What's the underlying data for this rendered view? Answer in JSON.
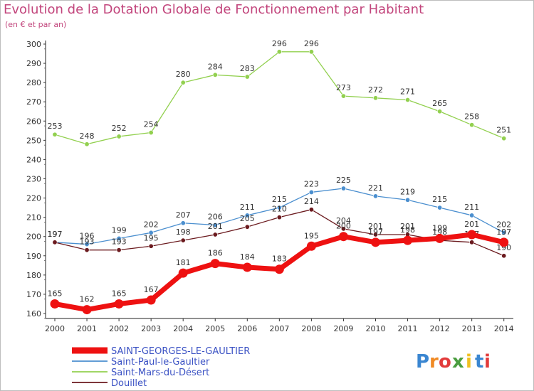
{
  "chart_data": {
    "type": "line",
    "title": "Evolution de la Dotation Globale de Fonctionnement par Habitant",
    "subtitle": "(en € et par an)",
    "xlabel": "",
    "ylabel": "",
    "ylim": [
      160,
      300
    ],
    "yticks": [
      160,
      170,
      180,
      190,
      200,
      210,
      220,
      230,
      240,
      250,
      260,
      270,
      280,
      290,
      300
    ],
    "x": [
      "2000",
      "2001",
      "2002",
      "2003",
      "2004",
      "2005",
      "2006",
      "2007",
      "2008",
      "2009",
      "2010",
      "2011",
      "2012",
      "2013",
      "2014"
    ],
    "grid": false,
    "legend_position": "bottom-left",
    "series": [
      {
        "name": "Saint-Mars-du-Désert",
        "color": "#92d04f",
        "values": [
          253,
          248,
          252,
          254,
          280,
          284,
          283,
          296,
          296,
          273,
          272,
          271,
          265,
          258,
          251
        ]
      },
      {
        "name": "Saint-Paul-le-Gaultier",
        "color": "#4b8fcf",
        "values": [
          197,
          196,
          199,
          202,
          207,
          206,
          211,
          215,
          223,
          225,
          221,
          219,
          215,
          211,
          202
        ]
      },
      {
        "name": "Douillet",
        "color": "#6b1a1e",
        "values": [
          197,
          193,
          193,
          195,
          198,
          201,
          205,
          210,
          214,
          204,
          201,
          201,
          198,
          197,
          190
        ]
      },
      {
        "name": "SAINT-GEORGES-LE-GAULTIER",
        "color": "#ee1111",
        "values": [
          165,
          162,
          165,
          167,
          181,
          186,
          184,
          183,
          195,
          200,
          197,
          198,
          199,
          201,
          197
        ]
      }
    ],
    "legend": [
      "SAINT-GEORGES-LE-GAULTIER",
      "Saint-Paul-le-Gaultier",
      "Saint-Mars-du-Désert",
      "Douillet"
    ]
  },
  "logo": {
    "text": "Proxiti",
    "letters": [
      "P",
      "r",
      "o",
      "x",
      "i",
      "t",
      "i"
    ],
    "colors": [
      "#3a86d1",
      "#f08a24",
      "#e23b3b",
      "#4a9d3f",
      "#f0c020",
      "#3a86d1",
      "#e23b3b"
    ]
  }
}
